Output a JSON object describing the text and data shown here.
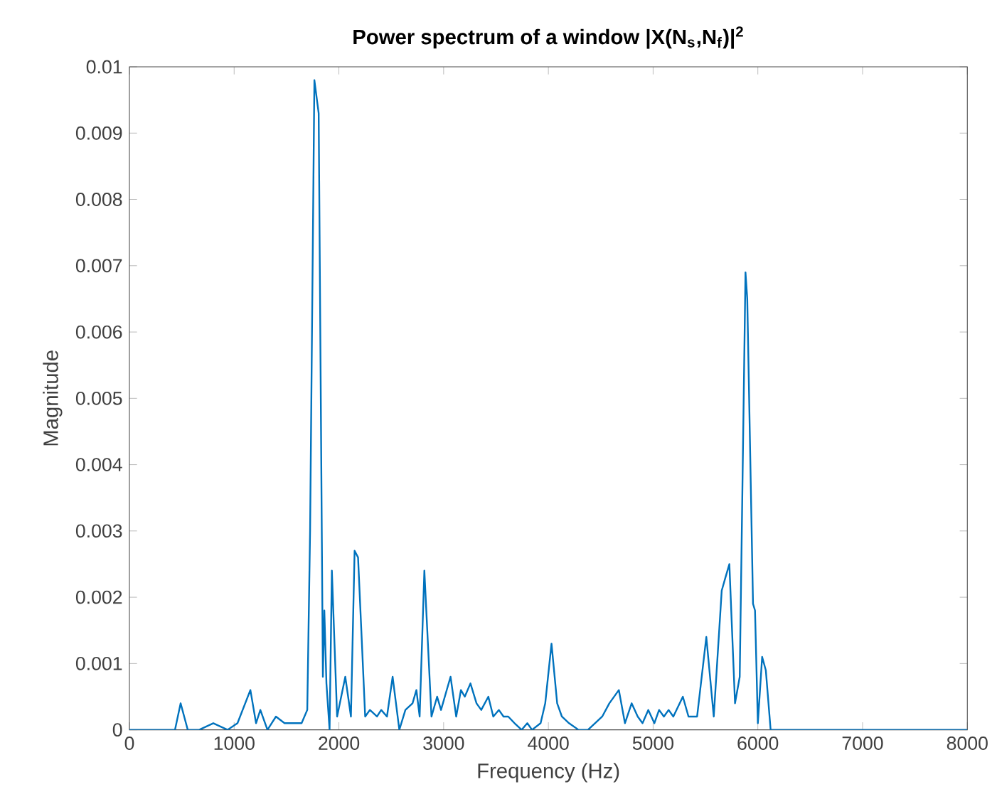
{
  "chart_data": {
    "type": "line",
    "title": "Power spectrum of a window |X(N$_{s}$,N$_{f}$)|$^{2}$",
    "xlabel": "Frequency (Hz)",
    "ylabel": "Magnitude",
    "xlim": [
      0,
      8000
    ],
    "ylim": [
      0,
      0.01
    ],
    "xticks": [
      0,
      1000,
      2000,
      3000,
      4000,
      5000,
      6000,
      7000,
      8000
    ],
    "yticks": [
      0,
      0.001,
      0.002,
      0.003,
      0.004,
      0.005,
      0.006,
      0.007,
      0.008,
      0.009,
      0.01
    ],
    "grid": false,
    "marker": "none",
    "line_style": "solid",
    "series": [
      {
        "color": "#0072bd",
        "x": [
          0,
          435,
          489,
          557,
          666,
          801,
          937,
          1032,
          1155,
          1209,
          1250,
          1318,
          1399,
          1481,
          1644,
          1698,
          1725,
          1766,
          1807,
          1847,
          1861,
          1881,
          1911,
          1933,
          1983,
          2061,
          2115,
          2150,
          2183,
          2251,
          2296,
          2364,
          2404,
          2459,
          2513,
          2577,
          2635,
          2703,
          2740,
          2771,
          2816,
          2884,
          2938,
          2975,
          3066,
          3120,
          3165,
          3202,
          3256,
          3314,
          3359,
          3427,
          3474,
          3527,
          3572,
          3617,
          3677,
          3745,
          3799,
          3844,
          3926,
          3970,
          4030,
          4084,
          4129,
          4197,
          4288,
          4378,
          4514,
          4582,
          4673,
          4731,
          4795,
          4853,
          4899,
          4954,
          5012,
          5057,
          5103,
          5148,
          5193,
          5284,
          5338,
          5420,
          5508,
          5579,
          5655,
          5691,
          5728,
          5782,
          5827,
          5882,
          5899,
          5954,
          5973,
          6000,
          6041,
          6076,
          6122,
          8000
        ],
        "values": [
          0,
          0,
          0.0004,
          0,
          0,
          0.0001,
          0,
          0.0001,
          0.0006,
          0.0001,
          0.0003,
          0,
          0.0002,
          0.0001,
          0.0001,
          0.0003,
          0.003,
          0.0098,
          0.0093,
          0.0008,
          0.0018,
          0.0007,
          0,
          0.0024,
          0.0002,
          0.0008,
          0.0002,
          0.0027,
          0.0026,
          0.0002,
          0.0003,
          0.0002,
          0.0003,
          0.0002,
          0.0008,
          0,
          0.0003,
          0.0004,
          0.0006,
          0.0002,
          0.0024,
          0.0002,
          0.0005,
          0.0003,
          0.0008,
          0.0002,
          0.0006,
          0.0005,
          0.0007,
          0.0004,
          0.0003,
          0.0005,
          0.0002,
          0.0003,
          0.0002,
          0.0002,
          0.0001,
          0,
          0.0001,
          0,
          0.0001,
          0.0004,
          0.0013,
          0.0004,
          0.0002,
          0.0001,
          0,
          0,
          0.0002,
          0.0004,
          0.0006,
          0.0001,
          0.0004,
          0.0002,
          0.0001,
          0.0003,
          0.0001,
          0.0003,
          0.0002,
          0.0003,
          0.0002,
          0.0005,
          0.0002,
          0.0002,
          0.0014,
          0.0002,
          0.0021,
          0.0023,
          0.0025,
          0.0004,
          0.0008,
          0.0069,
          0.0065,
          0.0019,
          0.0018,
          0.0001,
          0.0011,
          0.0009,
          0,
          0
        ]
      }
    ]
  }
}
